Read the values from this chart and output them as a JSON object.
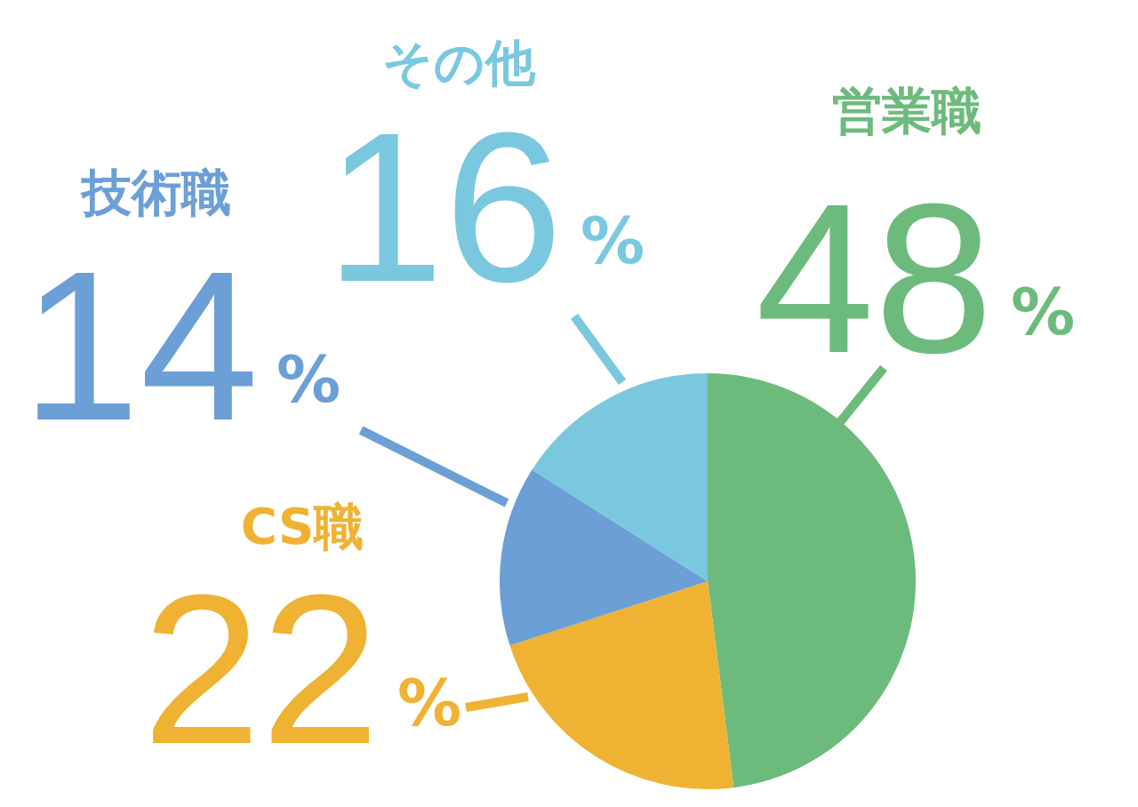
{
  "chart_data": {
    "type": "pie",
    "categories": [
      "営業職",
      "CS職",
      "技術職",
      "その他"
    ],
    "values": [
      48,
      22,
      14,
      16
    ],
    "colors": [
      "#6dbb7c",
      "#efb233",
      "#6b9fd6",
      "#7ac8e0"
    ],
    "value_labels": [
      "48%",
      "22%",
      "14%",
      "16%"
    ],
    "legend": false
  }
}
